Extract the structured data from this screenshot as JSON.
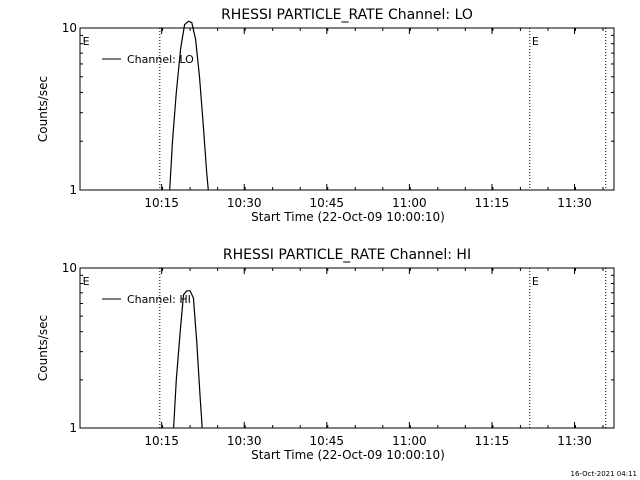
{
  "footer": {
    "timestamp": "16-Oct-2021 04:11"
  },
  "chart_data": [
    {
      "type": "line",
      "title": "RHESSI PARTICLE_RATE Channel: LO",
      "xlabel": "Start Time (22-Oct-09 10:00:10)",
      "ylabel": "Counts/sec",
      "yscale": "log",
      "ylim": [
        1,
        10
      ],
      "ytick_labels": [
        "1",
        "10"
      ],
      "xlim_minutes": [
        0,
        97
      ],
      "xtick_labels": [
        "10:15",
        "10:30",
        "10:45",
        "11:00",
        "11:15",
        "11:30"
      ],
      "xtick_minutes": [
        14.83,
        29.83,
        44.83,
        59.83,
        74.83,
        89.83
      ],
      "legend": {
        "position": "top-left",
        "entries": [
          "Channel: LO"
        ]
      },
      "event_lines_minutes": [
        14.5,
        81.7,
        95.5
      ],
      "event_labels": [
        {
          "text": "E",
          "at_minutes": 0.3
        },
        {
          "text": "E",
          "at_minutes": 81.9
        }
      ],
      "series": [
        {
          "name": "Channel: LO",
          "x_minutes": [
            16.3,
            16.8,
            17.5,
            18.3,
            19.0,
            19.7,
            20.3,
            21.0,
            21.7,
            22.4,
            23.0,
            23.3
          ],
          "values": [
            1.0,
            2.0,
            4.0,
            7.5,
            10.5,
            11.0,
            10.8,
            8.5,
            5.0,
            2.5,
            1.3,
            1.0
          ]
        }
      ]
    },
    {
      "type": "line",
      "title": "RHESSI PARTICLE_RATE Channel: HI",
      "xlabel": "Start Time (22-Oct-09 10:00:10)",
      "ylabel": "Counts/sec",
      "yscale": "log",
      "ylim": [
        1,
        10
      ],
      "ytick_labels": [
        "1",
        "10"
      ],
      "xlim_minutes": [
        0,
        97
      ],
      "xtick_labels": [
        "10:15",
        "10:30",
        "10:45",
        "11:00",
        "11:15",
        "11:30"
      ],
      "xtick_minutes": [
        14.83,
        29.83,
        44.83,
        59.83,
        74.83,
        89.83
      ],
      "legend": {
        "position": "top-left",
        "entries": [
          "Channel: HI"
        ]
      },
      "event_lines_minutes": [
        14.5,
        81.7,
        95.5
      ],
      "event_labels": [
        {
          "text": "E",
          "at_minutes": 0.3
        },
        {
          "text": "E",
          "at_minutes": 81.9
        }
      ],
      "series": [
        {
          "name": "Channel: HI",
          "x_minutes": [
            17.0,
            17.5,
            18.2,
            18.8,
            19.4,
            20.0,
            20.6,
            21.2,
            21.8,
            22.2
          ],
          "values": [
            1.0,
            2.0,
            4.0,
            6.8,
            7.2,
            7.2,
            6.5,
            3.5,
            1.6,
            1.0
          ]
        }
      ]
    }
  ]
}
